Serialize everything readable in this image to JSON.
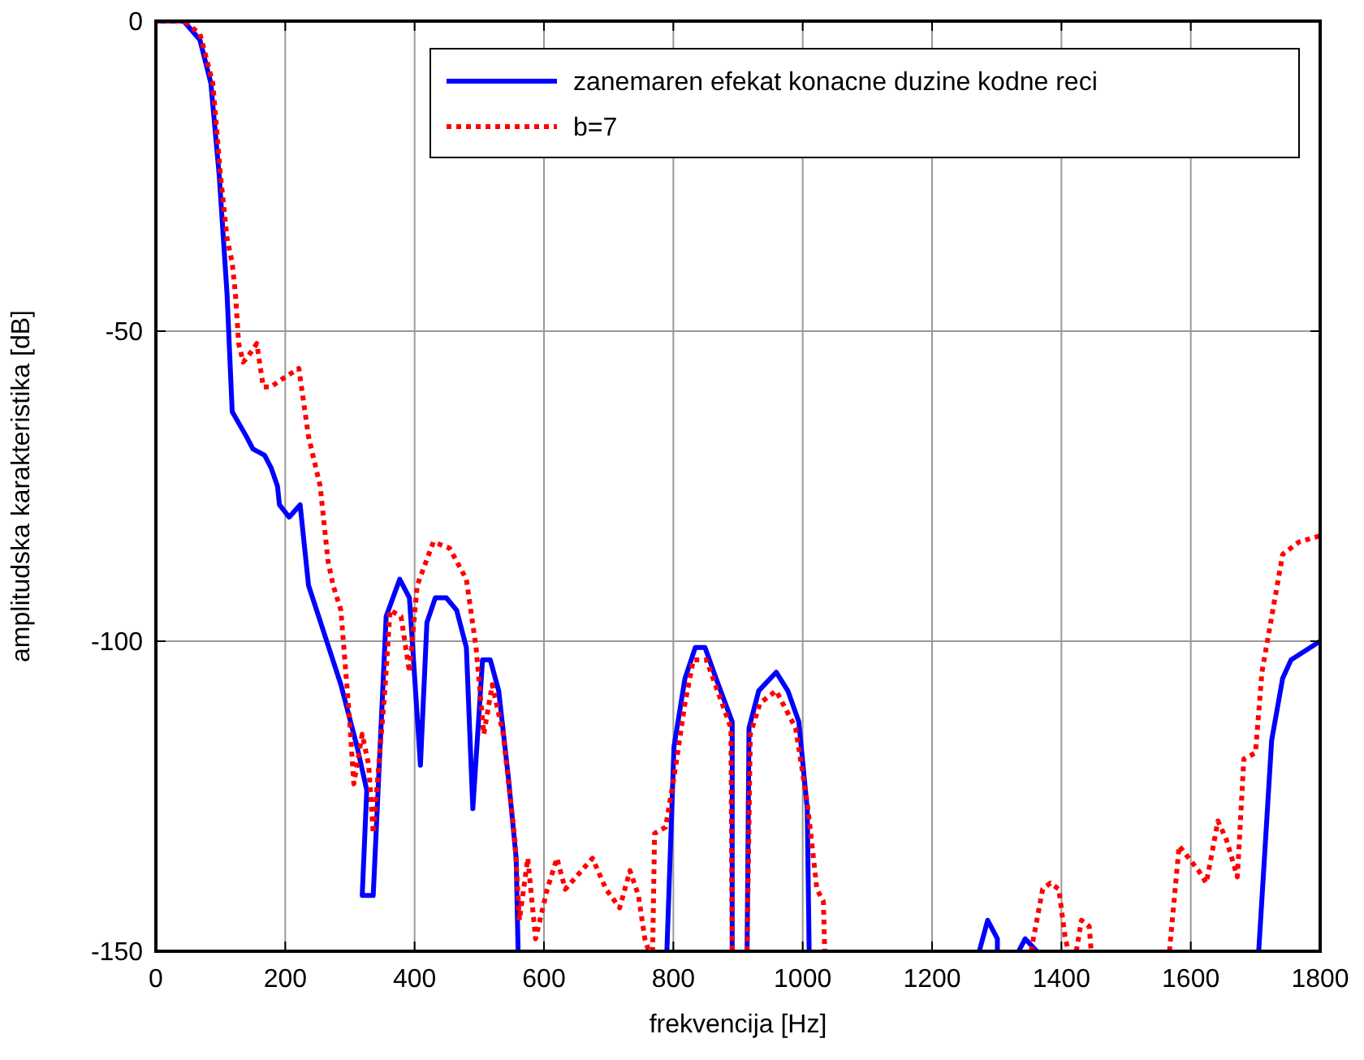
{
  "chart_data": {
    "type": "line",
    "xlabel": "frekvencija [Hz]",
    "ylabel": "amplitudska karakteristika [dB]",
    "xlim": [
      0,
      1800
    ],
    "ylim": [
      -150,
      0
    ],
    "xticks": [
      0,
      200,
      400,
      600,
      800,
      1000,
      1200,
      1400,
      1600,
      1800
    ],
    "yticks": [
      -150,
      -100,
      -50,
      0
    ],
    "grid": true,
    "legend": "top right",
    "series": [
      {
        "name": "zanemaren efekat konacne duzine kodne reci",
        "color": "#0000ff",
        "line_style": "solid",
        "x": [
          0,
          43,
          68,
          85,
          98,
          110,
          118,
          140,
          150,
          168,
          178,
          188,
          191,
          206,
          223,
          236,
          261,
          286,
          311,
          326,
          319,
          336,
          356,
          377,
          392,
          409,
          419,
          432,
          449,
          465,
          480,
          490,
          505,
          517,
          530,
          545,
          557,
          560,
          675,
          790,
          801,
          818,
          834,
          849,
          866,
          891,
          891,
          900,
          914,
          917,
          932,
          959,
          977,
          994,
          1007,
          1010,
          1140,
          1273,
          1286,
          1301,
          1301,
          1318,
          1334,
          1344,
          1362,
          1530,
          1705,
          1725,
          1742,
          1755,
          1800
        ],
        "values": [
          0,
          0,
          -3,
          -10,
          -25,
          -44,
          -63,
          -67,
          -69,
          -70,
          -72,
          -75,
          -78,
          -80,
          -78,
          -91,
          -99,
          -107,
          -117,
          -124,
          -141,
          -141,
          -96,
          -90,
          -93,
          -120,
          -97,
          -93,
          -93,
          -95,
          -101,
          -127,
          -103,
          -103,
          -108,
          -122,
          -135,
          -150,
          null,
          -150,
          -117,
          -106,
          -101,
          -101,
          -106,
          -113,
          -150,
          null,
          -150,
          -114,
          -108,
          -105,
          -108,
          -113,
          -127,
          -150,
          null,
          -150,
          -145,
          -148,
          -150,
          null,
          -150,
          -148,
          -150,
          null,
          -150,
          -116,
          -106,
          -103,
          -100
        ]
      },
      {
        "name": "b=7",
        "color": "#ff0000",
        "line_style": "dotted",
        "x": [
          0,
          43,
          68,
          88,
          100,
          110,
          118,
          123,
          128,
          135,
          143,
          156,
          166,
          178,
          191,
          221,
          236,
          254,
          266,
          274,
          286,
          299,
          306,
          319,
          329,
          336,
          354,
          362,
          379,
          392,
          404,
          429,
          454,
          480,
          495,
          507,
          520,
          537,
          555,
          562,
          575,
          587,
          605,
          620,
          633,
          675,
          696,
          717,
          733,
          746,
          756,
          762,
          768,
          771,
          788,
          801,
          818,
          831,
          851,
          889,
          891,
          900,
          914,
          919,
          934,
          959,
          989,
          1007,
          1022,
          1032,
          1034,
          1180,
          1353,
          1371,
          1383,
          1396,
          1406,
          1411,
          1417,
          1423,
          1431,
          1443,
          1446,
          1500,
          1567,
          1582,
          1597,
          1612,
          1624,
          1642,
          1655,
          1672,
          1682,
          1700,
          1710,
          1742,
          1767,
          1800
        ],
        "values": [
          0,
          0,
          -2,
          -10,
          -25,
          -35,
          -39,
          -44,
          -52,
          -55,
          -54,
          -52,
          -59,
          -59,
          -58,
          -56,
          -67,
          -75,
          -87,
          -91,
          -95,
          -112,
          -123,
          -115,
          -120,
          -131,
          -108,
          -95,
          -96,
          -105,
          -91,
          -84,
          -85,
          -90,
          -101,
          -115,
          -107,
          -115,
          -132,
          -145,
          -135,
          -148,
          -140,
          -135,
          -140,
          -135,
          -140,
          -143,
          -137,
          -141,
          -148,
          -150,
          -150,
          -131,
          -130,
          -122,
          -110,
          -103,
          -103,
          -114,
          -150,
          null,
          -150,
          -115,
          -110,
          -108,
          -114,
          -126,
          -140,
          -142,
          -150,
          null,
          -150,
          -140,
          -139,
          -140,
          -148,
          -150,
          null,
          -150,
          -145,
          -146,
          -150,
          null,
          -150,
          -133,
          -135,
          -137,
          -139,
          -129,
          -132,
          -138,
          -119,
          -118,
          -105,
          -86,
          -84,
          -83
        ]
      }
    ]
  }
}
